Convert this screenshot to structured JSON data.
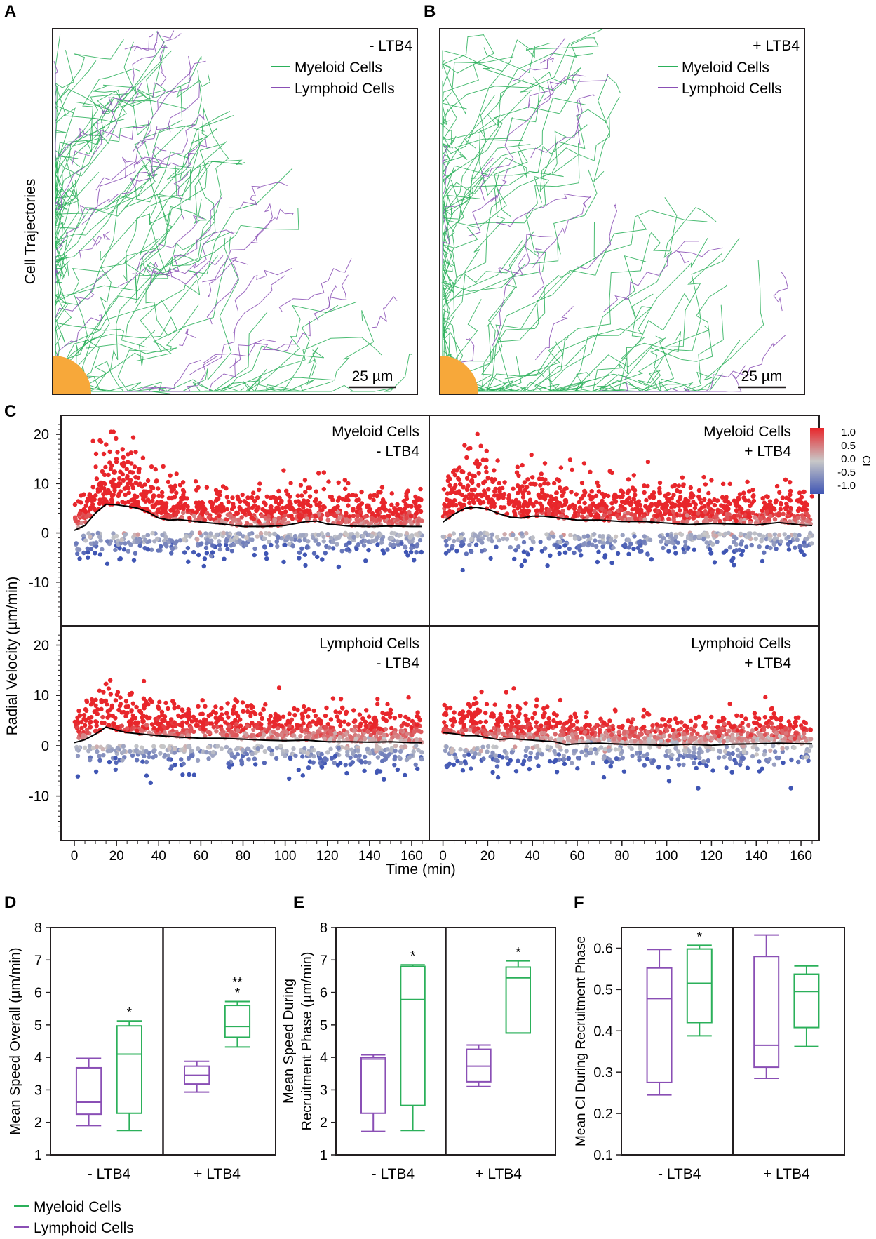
{
  "colors": {
    "myeloid": "#2bb05a",
    "lymphoid": "#8a4fb5",
    "ci_high": "#e8262b",
    "ci_mid": "#c8c8c8",
    "ci_low": "#3f55b4",
    "source": "#f7a83a",
    "axis": "#231f20"
  },
  "panel_letters": [
    "A",
    "B",
    "C",
    "D",
    "E",
    "F"
  ],
  "panel_a": {
    "ylabel": "Cell Trajectories",
    "condition": "- LTB4",
    "legend": [
      "Myeloid Cells",
      "Lymphoid Cells"
    ],
    "scale_bar": "25 µm"
  },
  "panel_b": {
    "condition": "+ LTB4",
    "legend": [
      "Myeloid Cells",
      "Lymphoid Cells"
    ],
    "scale_bar": "25 µm"
  },
  "chart_data": [
    {
      "panel": "C",
      "type": "scatter",
      "xlabel": "Time (min)",
      "ylabel": "Radial Velocity (µm/min)",
      "xlim": [
        -3,
        165
      ],
      "ylim": [
        -18,
        23
      ],
      "xticks": [
        0,
        20,
        40,
        60,
        80,
        100,
        120,
        140,
        160
      ],
      "yticks": [
        -10,
        0,
        10,
        20
      ],
      "colorbar": {
        "label": "CI",
        "ticks": [
          "1.0",
          "0.5",
          "0.0",
          "-0.5",
          "-1.0"
        ],
        "range": [
          -1.0,
          1.0
        ]
      },
      "subplots": [
        {
          "cell_type": "Myeloid Cells",
          "condition": "- LTB4",
          "trend": {
            "x": [
              0,
              5,
              10,
              15,
              20,
              25,
              30,
              35,
              40,
              45,
              50,
              60,
              70,
              80,
              90,
              100,
              110,
              115,
              120,
              130,
              140,
              150,
              160,
              165
            ],
            "y": [
              0.5,
              1.5,
              4.0,
              5.8,
              5.7,
              5.4,
              5.0,
              4.2,
              3.0,
              2.6,
              2.7,
              2.2,
              1.8,
              1.3,
              1.3,
              1.5,
              2.3,
              2.4,
              1.8,
              1.4,
              1.3,
              1.4,
              1.3,
              1.3
            ]
          }
        },
        {
          "cell_type": "Myeloid Cells",
          "condition": "+ LTB4",
          "trend": {
            "x": [
              0,
              5,
              10,
              15,
              20,
              25,
              30,
              35,
              40,
              45,
              50,
              60,
              70,
              80,
              90,
              100,
              110,
              120,
              130,
              140,
              150,
              160,
              165
            ],
            "y": [
              2.2,
              3.8,
              5.0,
              5.2,
              4.8,
              3.9,
              3.2,
              3.0,
              3.4,
              3.4,
              3.1,
              2.6,
              2.6,
              2.3,
              2.3,
              2.0,
              1.7,
              1.9,
              1.8,
              1.6,
              2.1,
              1.6,
              1.5
            ]
          }
        },
        {
          "cell_type": "Lymphoid Cells",
          "condition": "- LTB4",
          "trend": {
            "x": [
              0,
              5,
              10,
              15,
              20,
              25,
              30,
              40,
              50,
              60,
              70,
              80,
              90,
              100,
              110,
              120,
              130,
              140,
              150,
              160,
              165
            ],
            "y": [
              0.6,
              1.2,
              2.3,
              3.7,
              3.1,
              2.6,
              2.4,
              2.0,
              1.7,
              1.5,
              1.5,
              1.3,
              1.1,
              1.0,
              1.1,
              0.8,
              0.8,
              0.7,
              0.8,
              0.6,
              0.6
            ]
          }
        },
        {
          "cell_type": "Lymphoid Cells",
          "condition": "+ LTB4",
          "trend": {
            "x": [
              0,
              5,
              10,
              15,
              20,
              25,
              30,
              40,
              50,
              55,
              60,
              70,
              80,
              90,
              100,
              110,
              120,
              130,
              140,
              150,
              160,
              165
            ],
            "y": [
              2.6,
              2.4,
              2.0,
              2.0,
              1.6,
              1.2,
              1.4,
              1.1,
              0.8,
              0.2,
              0.4,
              0.5,
              0.3,
              0.2,
              0.1,
              0.3,
              0.1,
              0.3,
              0.4,
              0.5,
              0.4,
              0.4
            ]
          }
        }
      ]
    },
    {
      "panel": "D",
      "type": "box",
      "ylabel": "Mean Speed Overall (µm/min)",
      "ylim": [
        1,
        8
      ],
      "yticks": [
        1,
        2,
        3,
        4,
        5,
        6,
        7,
        8
      ],
      "groups": [
        "- LTB4",
        "+ LTB4"
      ],
      "boxes": [
        {
          "group": "- LTB4",
          "series": "Lymphoid Cells",
          "min": 1.9,
          "q1": 2.25,
          "median": 2.62,
          "q3": 3.68,
          "max": 3.97,
          "sig": ""
        },
        {
          "group": "- LTB4",
          "series": "Myeloid Cells",
          "min": 1.75,
          "q1": 2.28,
          "median": 4.1,
          "q3": 4.97,
          "max": 5.12,
          "sig": "*"
        },
        {
          "group": "+ LTB4",
          "series": "Lymphoid Cells",
          "min": 2.93,
          "q1": 3.18,
          "median": 3.45,
          "q3": 3.73,
          "max": 3.88,
          "sig": ""
        },
        {
          "group": "+ LTB4",
          "series": "Myeloid Cells",
          "min": 4.32,
          "q1": 4.62,
          "median": 4.95,
          "q3": 5.6,
          "max": 5.72,
          "sig": "**\n*"
        }
      ]
    },
    {
      "panel": "E",
      "type": "box",
      "ylabel": [
        "Mean Speed During",
        "Recruitment Phase (µm/min)"
      ],
      "ylim": [
        1,
        8
      ],
      "yticks": [
        1,
        2,
        3,
        4,
        5,
        6,
        7,
        8
      ],
      "groups": [
        "- LTB4",
        "+ LTB4"
      ],
      "boxes": [
        {
          "group": "- LTB4",
          "series": "Lymphoid Cells",
          "min": 1.72,
          "q1": 2.28,
          "median": 3.95,
          "q3": 4.0,
          "max": 4.08,
          "sig": ""
        },
        {
          "group": "- LTB4",
          "series": "Myeloid Cells",
          "min": 1.75,
          "q1": 2.52,
          "median": 5.78,
          "q3": 6.8,
          "max": 6.85,
          "sig": "*"
        },
        {
          "group": "+ LTB4",
          "series": "Lymphoid Cells",
          "min": 3.1,
          "q1": 3.25,
          "median": 3.73,
          "q3": 4.25,
          "max": 4.38,
          "sig": ""
        },
        {
          "group": "+ LTB4",
          "series": "Myeloid Cells",
          "min": 4.75,
          "q1": 4.75,
          "median": 6.45,
          "q3": 6.78,
          "max": 6.97,
          "sig": "*"
        }
      ]
    },
    {
      "panel": "F",
      "type": "box",
      "ylabel": "Mean CI During Recruitment Phase",
      "ylim": [
        0.1,
        0.65
      ],
      "yticks": [
        "0.1",
        "0.2",
        "0.3",
        "0.4",
        "0.5",
        "0.6"
      ],
      "groups": [
        "- LTB4",
        "+ LTB4"
      ],
      "boxes": [
        {
          "group": "- LTB4",
          "series": "Lymphoid Cells",
          "min": 0.245,
          "q1": 0.275,
          "median": 0.478,
          "q3": 0.552,
          "max": 0.597,
          "sig": ""
        },
        {
          "group": "- LTB4",
          "series": "Myeloid Cells",
          "min": 0.388,
          "q1": 0.42,
          "median": 0.515,
          "q3": 0.598,
          "max": 0.607,
          "sig": "*"
        },
        {
          "group": "+ LTB4",
          "series": "Lymphoid Cells",
          "min": 0.285,
          "q1": 0.312,
          "median": 0.365,
          "q3": 0.58,
          "max": 0.632,
          "sig": ""
        },
        {
          "group": "+ LTB4",
          "series": "Myeloid Cells",
          "min": 0.362,
          "q1": 0.408,
          "median": 0.495,
          "q3": 0.537,
          "max": 0.557,
          "sig": ""
        }
      ]
    }
  ],
  "legend_bottom": [
    "Myeloid Cells",
    "Lymphoid Cells"
  ]
}
